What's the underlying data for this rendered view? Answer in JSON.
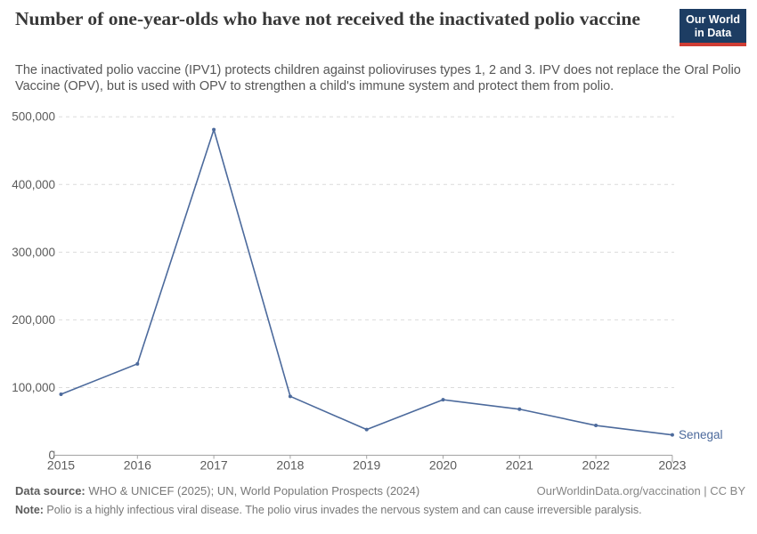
{
  "header": {
    "title": "Number of one-year-olds who have not received the inactivated polio vaccine",
    "subtitle": "The inactivated polio vaccine (IPV1) protects children against polioviruses types 1, 2 and 3. IPV does not replace the Oral Polio Vaccine (OPV), but is used with OPV to strengthen a child's immune system and protect them from polio.",
    "logo": {
      "line1": "Our World",
      "line2": "in Data",
      "bg_color": "#1d3d63",
      "accent_color": "#cf3d34"
    }
  },
  "chart_data": {
    "type": "line",
    "title": "Number of one-year-olds who have not received the inactivated polio vaccine",
    "xlabel": "",
    "ylabel": "",
    "x": [
      2015,
      2016,
      2017,
      2018,
      2019,
      2020,
      2021,
      2022,
      2023
    ],
    "series": [
      {
        "name": "Senegal",
        "color": "#4c6a9c",
        "values": [
          90000,
          135000,
          481000,
          87000,
          38000,
          82000,
          68000,
          44000,
          30000
        ]
      }
    ],
    "ylim": [
      0,
      500000
    ],
    "yticks": [
      0,
      100000,
      200000,
      300000,
      400000,
      500000
    ],
    "grid": true,
    "gridline_color": "#dcdcdc",
    "axis_color": "#a3a3a3",
    "tick_label_color": "#5b5b5b",
    "legend": "line-end-label"
  },
  "footer": {
    "source_label": "Data source:",
    "source_text": " WHO & UNICEF (2025); UN, World Population Prospects (2024)",
    "credit": "OurWorldinData.org/vaccination | CC BY",
    "note_label": "Note:",
    "note_text": " Polio is a highly infectious viral disease. The polio virus invades the nervous system and can cause irreversible paralysis."
  }
}
